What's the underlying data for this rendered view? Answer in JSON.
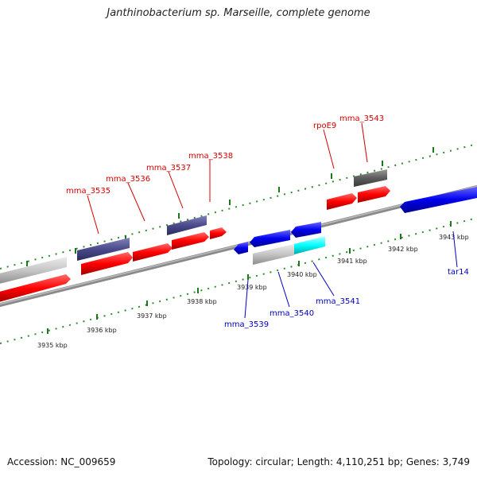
{
  "title": "Janthinobacterium sp. Marseille, complete genome",
  "accession": "Accession: NC_009659",
  "summary": "Topology: circular; Length: 4,110,251 bp; Genes: 3,749",
  "colors": {
    "forward": "#ff0000",
    "reverse": "#0000ff",
    "cds_purple": "#4a4a8c",
    "cds_grey": "#c8c8c8",
    "cds_darkgrey": "#646464",
    "rna_cyan": "#00ffff",
    "tick": "#006400",
    "backbone": "#888888"
  },
  "ruler_labels": [
    "3935 kbp",
    "3936 kbp",
    "3937 kbp",
    "3938 kbp",
    "3939 kbp",
    "3940 kbp",
    "3941 kbp",
    "3942 kbp",
    "3943 kbp"
  ],
  "forward_labels": [
    "mma_3535",
    "mma_3536",
    "mma_3537",
    "mma_3538",
    "rpoE9",
    "mma_3543"
  ],
  "reverse_labels": [
    "mma_3539",
    "mma_3540",
    "mma_3541",
    "tar14"
  ]
}
